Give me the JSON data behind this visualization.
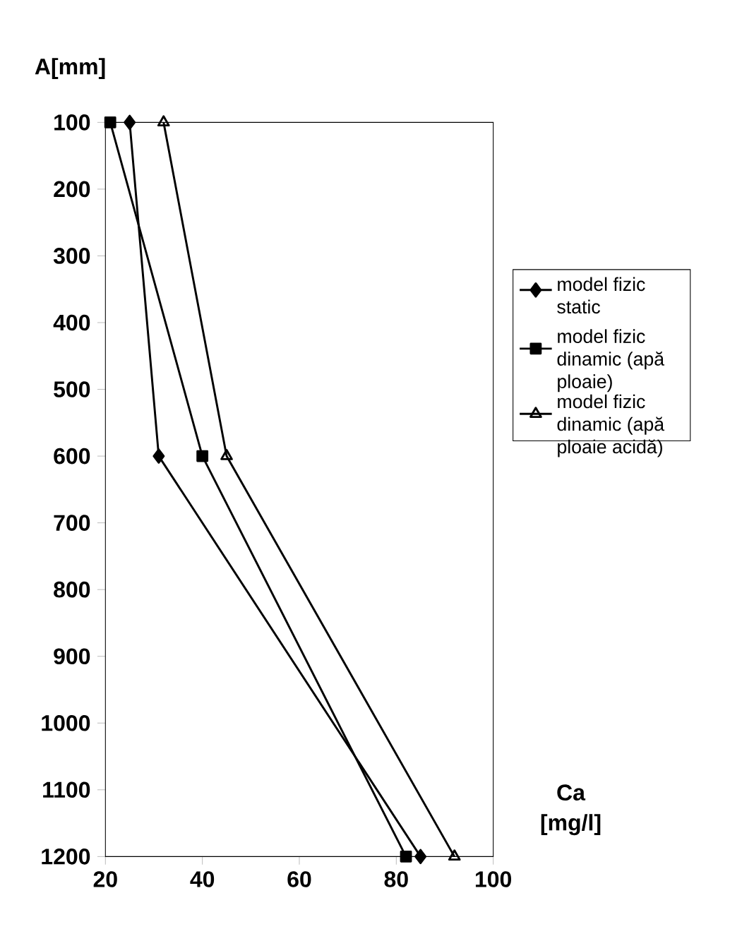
{
  "chart_data": {
    "type": "line",
    "xlabel": "Ca [mg/l]",
    "ylabel": "A[mm]",
    "xlim": [
      20,
      100
    ],
    "xticks": [
      20,
      40,
      60,
      80,
      100
    ],
    "ylim": [
      1200,
      100
    ],
    "yticks": [
      100,
      200,
      300,
      400,
      500,
      600,
      700,
      800,
      900,
      1000,
      1100,
      1200
    ],
    "legend": "right",
    "grid": false,
    "line_style": "solid",
    "series": [
      {
        "name": "model fizic static",
        "color": "#000000",
        "marker": "diamond",
        "x": [
          25,
          31,
          85
        ],
        "values": [
          100,
          600,
          1200
        ]
      },
      {
        "name": "model fizic dinamic (apă ploaie)",
        "color": "#000000",
        "marker": "square",
        "x": [
          21,
          40,
          82
        ],
        "values": [
          100,
          600,
          1200
        ]
      },
      {
        "name": "model fizic dinamic (apă ploaie acidă)",
        "color": "#000000",
        "marker": "triangle",
        "x": [
          32,
          45,
          92
        ],
        "values": [
          100,
          600,
          1200
        ]
      }
    ]
  }
}
